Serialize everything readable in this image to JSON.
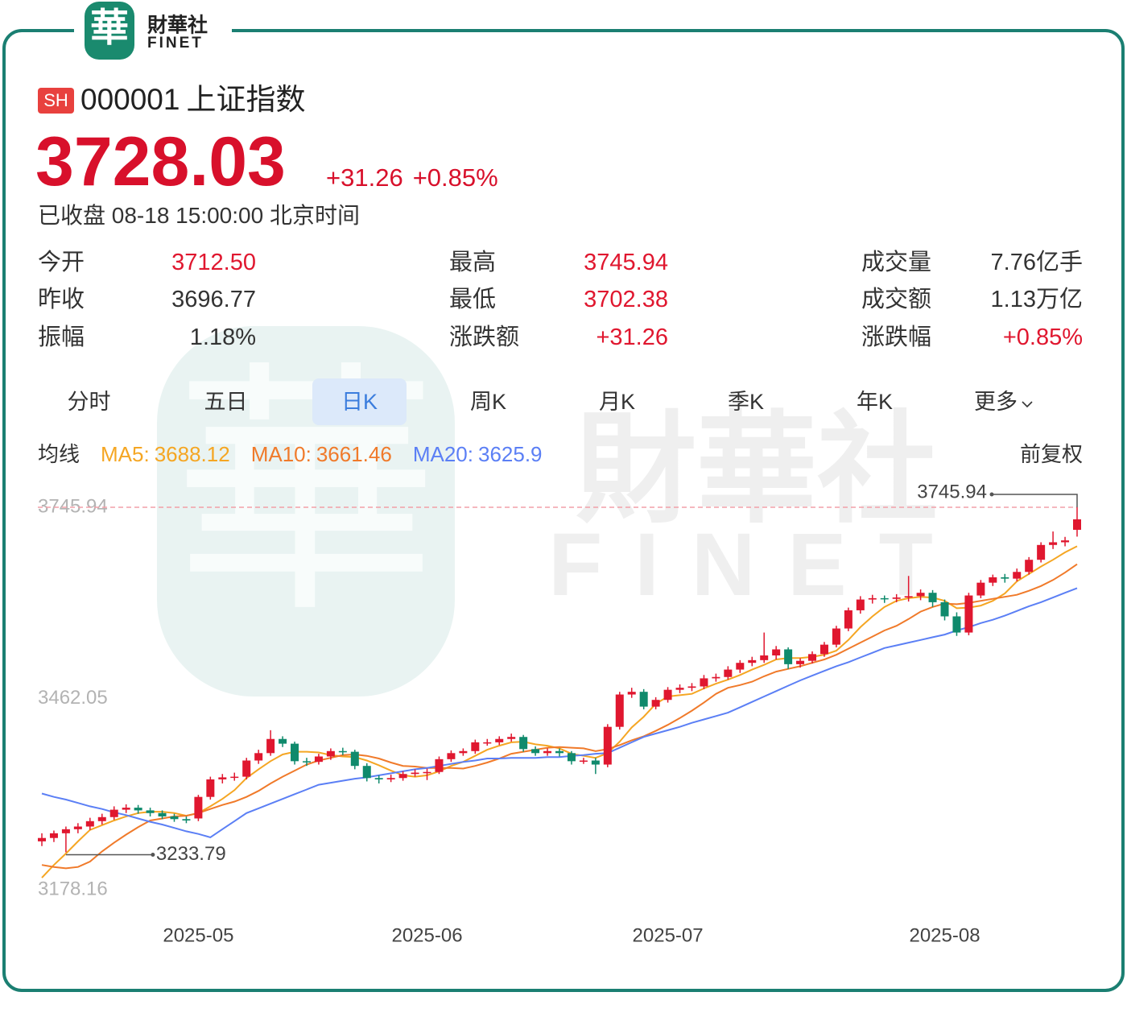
{
  "header": {
    "logo": "華",
    "brand": "財華社",
    "brand_en": "FINET"
  },
  "quote": {
    "exchange": "SH",
    "code": "000001",
    "name": "上证指数",
    "price": "3728.03",
    "change": "+31.26",
    "change_pct": "+0.85%",
    "status": "已收盘 08-18 15:00:00 北京时间"
  },
  "stats": [
    {
      "label": "今开",
      "value": "3712.50",
      "color": "#e0172f"
    },
    {
      "label": "最高",
      "value": "3745.94",
      "color": "#e0172f"
    },
    {
      "label": "成交量",
      "value": "7.76亿手"
    },
    {
      "label": "昨收",
      "value": "3696.77"
    },
    {
      "label": "最低",
      "value": "3702.38",
      "color": "#e0172f"
    },
    {
      "label": "成交额",
      "value": "1.13万亿"
    },
    {
      "label": "振幅",
      "value": "1.18%"
    },
    {
      "label": "涨跌额",
      "value": "+31.26",
      "color": "#e0172f"
    },
    {
      "label": "涨跌幅",
      "value": "+0.85%",
      "color": "#e0172f"
    }
  ],
  "tabs": {
    "items": [
      "分时",
      "五日",
      "日K",
      "周K",
      "月K",
      "季K",
      "年K",
      "更多"
    ],
    "active": 2
  },
  "chart_data": {
    "type": "candlestick",
    "legend_title": "均线",
    "adjust_label": "前复权",
    "categories": [
      null,
      null,
      null,
      null,
      null,
      null,
      null,
      null,
      null,
      null,
      null,
      null,
      null,
      "2025-05",
      null,
      null,
      null,
      null,
      null,
      null,
      null,
      null,
      null,
      null,
      null,
      null,
      null,
      null,
      null,
      null,
      null,
      null,
      "2025-06",
      null,
      null,
      null,
      null,
      null,
      null,
      null,
      null,
      null,
      null,
      null,
      null,
      null,
      null,
      null,
      null,
      null,
      null,
      null,
      "2025-07",
      null,
      null,
      null,
      null,
      null,
      null,
      null,
      null,
      null,
      null,
      null,
      null,
      null,
      null,
      null,
      null,
      null,
      null,
      null,
      null,
      null,
      null,
      "2025-08",
      null,
      null,
      null,
      null,
      null,
      null,
      null,
      null,
      null,
      null,
      null
    ],
    "open": [
      3250,
      3255,
      3262,
      3268,
      3272,
      3280,
      3286,
      3297,
      3300,
      3296,
      3292,
      3287,
      3283,
      3284,
      3316,
      3342,
      3345,
      3346,
      3370,
      3381,
      3402,
      3395,
      3369,
      3368,
      3376,
      3384,
      3383,
      3362,
      3344,
      3342,
      3344,
      3350,
      3352,
      3353,
      3372,
      3381,
      3384,
      3397,
      3397,
      3402,
      3405,
      3387,
      3381,
      3384,
      3381,
      3369,
      3370,
      3364,
      3420,
      3468,
      3472,
      3450,
      3460,
      3475,
      3478,
      3480,
      3492,
      3494,
      3505,
      3515,
      3519,
      3526,
      3535,
      3513,
      3518,
      3528,
      3542,
      3566,
      3593,
      3609,
      3611,
      3610,
      3612,
      3614,
      3619,
      3605,
      3584,
      3560,
      3615,
      3634,
      3642,
      3640,
      3650,
      3668,
      3690,
      3694,
      3712.5
    ],
    "close": [
      3255,
      3262,
      3268,
      3272,
      3280,
      3286,
      3297,
      3300,
      3296,
      3292,
      3287,
      3283,
      3281,
      3316,
      3342,
      3345,
      3346,
      3370,
      3381,
      3402,
      3395,
      3369,
      3368,
      3376,
      3384,
      3383,
      3362,
      3344,
      3342,
      3344,
      3350,
      3352,
      3353,
      3372,
      3381,
      3384,
      3397,
      3397,
      3402,
      3405,
      3387,
      3381,
      3384,
      3381,
      3369,
      3370,
      3364,
      3420,
      3468,
      3472,
      3450,
      3460,
      3475,
      3478,
      3480,
      3492,
      3494,
      3505,
      3515,
      3519,
      3526,
      3535,
      3513,
      3518,
      3528,
      3542,
      3566,
      3593,
      3609,
      3611,
      3610,
      3612,
      3614,
      3619,
      3605,
      3584,
      3560,
      3615,
      3634,
      3642,
      3640,
      3650,
      3668,
      3690,
      3694,
      3696.77,
      3728.03
    ],
    "low": [
      3243,
      3249,
      3233.79,
      3262,
      3267,
      3275,
      3282,
      3292,
      3291,
      3287,
      3283,
      3279,
      3277,
      3280,
      3312,
      3336,
      3340,
      3342,
      3365,
      3377,
      3390,
      3364,
      3362,
      3364,
      3371,
      3378,
      3357,
      3339,
      3336,
      3338,
      3340,
      3346,
      3341,
      3350,
      3368,
      3377,
      3380,
      3392,
      3393,
      3398,
      3383,
      3377,
      3377,
      3376,
      3364,
      3365,
      3350,
      3360,
      3416,
      3463,
      3446,
      3446,
      3456,
      3470,
      3473,
      3476,
      3487,
      3490,
      3500,
      3510,
      3515,
      3520,
      3506,
      3508,
      3514,
      3524,
      3538,
      3562,
      3588,
      3603,
      3604,
      3605,
      3606,
      3608,
      3598,
      3578,
      3555,
      3556,
      3611,
      3629,
      3634,
      3636,
      3646,
      3664,
      3684,
      3688,
      3702.38
    ],
    "high": [
      3262,
      3266,
      3272,
      3277,
      3285,
      3291,
      3302,
      3305,
      3304,
      3300,
      3296,
      3291,
      3287,
      3319,
      3346,
      3350,
      3352,
      3374,
      3386,
      3415,
      3406,
      3398,
      3374,
      3380,
      3388,
      3389,
      3386,
      3366,
      3348,
      3349,
      3354,
      3357,
      3358,
      3376,
      3385,
      3388,
      3401,
      3402,
      3406,
      3410,
      3408,
      3391,
      3388,
      3388,
      3384,
      3374,
      3374,
      3424,
      3472,
      3478,
      3476,
      3464,
      3479,
      3483,
      3485,
      3497,
      3499,
      3510,
      3519,
      3524,
      3560,
      3540,
      3538,
      3522,
      3532,
      3546,
      3570,
      3597,
      3614,
      3616,
      3615,
      3617,
      3644,
      3624,
      3623,
      3609,
      3590,
      3619,
      3638,
      3646,
      3647,
      3655,
      3672,
      3694,
      3710,
      3702,
      3745.94
    ],
    "up_color": "#e0172f",
    "down_color": "#0f8a6c",
    "series": [
      {
        "name": "MA5:",
        "color": "#f5a623",
        "values": [
          3196,
          3215,
          3232,
          3250,
          3267,
          3274,
          3281,
          3287,
          3292,
          3294,
          3294,
          3292,
          3288,
          3292,
          3302,
          3313,
          3326,
          3344,
          3357,
          3369,
          3379,
          3383,
          3383,
          3382,
          3378,
          3376,
          3375,
          3370,
          3363,
          3355,
          3348,
          3346,
          3348,
          3354,
          3362,
          3368,
          3377,
          3386,
          3392,
          3397,
          3398,
          3394,
          3392,
          3388,
          3380,
          3377,
          3374,
          3381,
          3398,
          3419,
          3435,
          3454,
          3465,
          3467,
          3469,
          3477,
          3484,
          3490,
          3497,
          3505,
          3512,
          3520,
          3522,
          3522,
          3524,
          3527,
          3533,
          3549,
          3568,
          3584,
          3598,
          3607,
          3611,
          3613,
          3612,
          3607,
          3596,
          3597,
          3600,
          3607,
          3618,
          3636,
          3647,
          3658,
          3668,
          3679,
          3688.12
        ]
      },
      {
        "name": "MA10:",
        "color": "#f07a2a",
        "values": [
          3215,
          3212,
          3210,
          3212,
          3220,
          3235,
          3248,
          3260,
          3271,
          3281,
          3284,
          3287,
          3288,
          3292,
          3298,
          3304,
          3309,
          3316,
          3325,
          3336,
          3346,
          3355,
          3364,
          3370,
          3374,
          3378,
          3379,
          3377,
          3373,
          3367,
          3362,
          3361,
          3359,
          3359,
          3359,
          3358,
          3362,
          3367,
          3373,
          3380,
          3383,
          3386,
          3389,
          3390,
          3389,
          3388,
          3384,
          3387,
          3393,
          3400,
          3406,
          3414,
          3423,
          3433,
          3444,
          3456,
          3469,
          3478,
          3482,
          3487,
          3495,
          3502,
          3506,
          3510,
          3515,
          3520,
          3527,
          3536,
          3545,
          3554,
          3563,
          3570,
          3580,
          3591,
          3598,
          3603,
          3602,
          3604,
          3607,
          3610,
          3613,
          3616,
          3622,
          3629,
          3638,
          3649,
          3661.46
        ]
      },
      {
        "name": "MA20:",
        "color": "#5b7ff5",
        "values": [
          3321,
          3316,
          3312,
          3307,
          3302,
          3298,
          3293,
          3289,
          3284,
          3279,
          3275,
          3270,
          3265,
          3261,
          3256,
          3268,
          3280,
          3292,
          3299,
          3306,
          3313,
          3320,
          3327,
          3334,
          3337,
          3340,
          3343,
          3345,
          3348,
          3351,
          3354,
          3357,
          3359,
          3362,
          3365,
          3368,
          3370,
          3373,
          3373,
          3374,
          3374,
          3374,
          3375,
          3375,
          3377,
          3378,
          3380,
          3381,
          3389,
          3397,
          3405,
          3410,
          3415,
          3420,
          3426,
          3431,
          3436,
          3441,
          3449,
          3457,
          3465,
          3473,
          3481,
          3489,
          3496,
          3503,
          3510,
          3516,
          3523,
          3530,
          3537,
          3541,
          3545,
          3549,
          3553,
          3557,
          3563,
          3568,
          3574,
          3579,
          3585,
          3592,
          3599,
          3605,
          3612,
          3619,
          3625.9
        ]
      }
    ],
    "ylim": [
      3178.16,
      3745.94
    ],
    "yticks": [
      3178.16,
      3462.05,
      3745.94
    ],
    "grid": false
  }
}
